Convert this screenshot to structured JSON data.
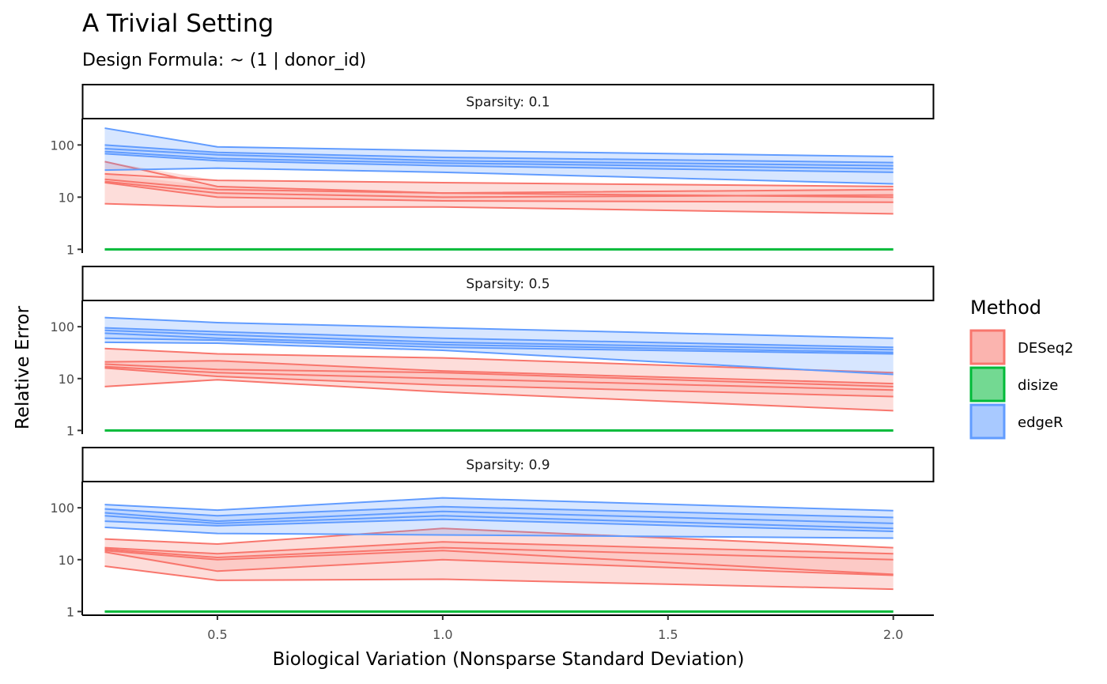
{
  "chart_data": {
    "type": "area",
    "title": "A Trivial Setting",
    "subtitle": "Design Formula: ~ (1 | donor_id)",
    "xlabel": "Biological Variation (Nonsparse Standard Deviation)",
    "ylabel": "Relative Error",
    "x": [
      0.25,
      0.5,
      1.0,
      2.0
    ],
    "xlim": [
      0.2,
      2.09
    ],
    "x_ticks": [
      0.5,
      1.0,
      1.5,
      2.0
    ],
    "x_tick_labels": [
      "0.5",
      "1.0",
      "1.5",
      "2.0"
    ],
    "y_scale": "log10",
    "ylim": [
      0.85,
      320
    ],
    "y_ticks": [
      1,
      10,
      100
    ],
    "y_tick_labels": [
      "1",
      "10",
      "100"
    ],
    "grid": false,
    "legend": {
      "title": "Method",
      "position": "right",
      "entries": [
        {
          "label": "DESeq2",
          "color": "#F8766D"
        },
        {
          "label": "disize",
          "color": "#00BA38"
        },
        {
          "label": "edgeR",
          "color": "#619CFF"
        }
      ]
    },
    "panels": [
      {
        "strip": "Sparsity: 0.1",
        "series": [
          {
            "name": "DESeq2",
            "color": "#F8766D",
            "lines": [
              [
                48,
                16,
                12,
                10
              ],
              [
                28,
                21,
                19,
                16
              ],
              [
                22,
                14,
                12,
                14
              ],
              [
                20,
                12,
                10,
                11
              ],
              [
                19,
                10,
                8.5,
                8
              ],
              [
                7.5,
                6.5,
                6.5,
                4.8
              ]
            ]
          },
          {
            "name": "disize",
            "color": "#00BA38",
            "lines": [
              [
                1,
                1,
                1,
                1
              ]
            ]
          },
          {
            "name": "edgeR",
            "color": "#619CFF",
            "lines": [
              [
                210,
                92,
                78,
                60
              ],
              [
                100,
                72,
                58,
                46
              ],
              [
                85,
                65,
                50,
                40
              ],
              [
                75,
                55,
                45,
                35
              ],
              [
                68,
                50,
                40,
                30
              ],
              [
                33,
                36,
                30,
                18
              ]
            ]
          }
        ]
      },
      {
        "strip": "Sparsity: 0.5",
        "series": [
          {
            "name": "DESeq2",
            "color": "#F8766D",
            "lines": [
              [
                38,
                30,
                25,
                13
              ],
              [
                21,
                22,
                14,
                8
              ],
              [
                19,
                15,
                13,
                7
              ],
              [
                17,
                13,
                10,
                6
              ],
              [
                16,
                11,
                7.5,
                4.5
              ],
              [
                7,
                9.5,
                5.5,
                2.4
              ]
            ]
          },
          {
            "name": "disize",
            "color": "#00BA38",
            "lines": [
              [
                1,
                1,
                1,
                1
              ]
            ]
          },
          {
            "name": "edgeR",
            "color": "#619CFF",
            "lines": [
              [
                150,
                120,
                95,
                60
              ],
              [
                95,
                80,
                60,
                40
              ],
              [
                85,
                70,
                50,
                36
              ],
              [
                75,
                60,
                45,
                32
              ],
              [
                60,
                55,
                40,
                30
              ],
              [
                50,
                48,
                35,
                12
              ]
            ]
          }
        ]
      },
      {
        "strip": "Sparsity: 0.9",
        "series": [
          {
            "name": "DESeq2",
            "color": "#F8766D",
            "lines": [
              [
                25,
                20,
                40,
                17
              ],
              [
                17,
                13,
                22,
                13
              ],
              [
                16,
                11,
                17,
                10
              ],
              [
                15,
                10,
                15,
                5.2
              ],
              [
                14,
                6,
                10,
                5
              ],
              [
                7.5,
                4,
                4.2,
                2.7
              ]
            ]
          },
          {
            "name": "disize",
            "color": "#00BA38",
            "lines": [
              [
                1,
                1,
                1,
                1
              ]
            ]
          },
          {
            "name": "edgeR",
            "color": "#619CFF",
            "lines": [
              [
                115,
                90,
                155,
                88
              ],
              [
                95,
                70,
                105,
                65
              ],
              [
                80,
                55,
                85,
                50
              ],
              [
                70,
                50,
                70,
                40
              ],
              [
                55,
                45,
                60,
                35
              ],
              [
                42,
                32,
                30,
                26
              ]
            ]
          }
        ]
      }
    ]
  }
}
